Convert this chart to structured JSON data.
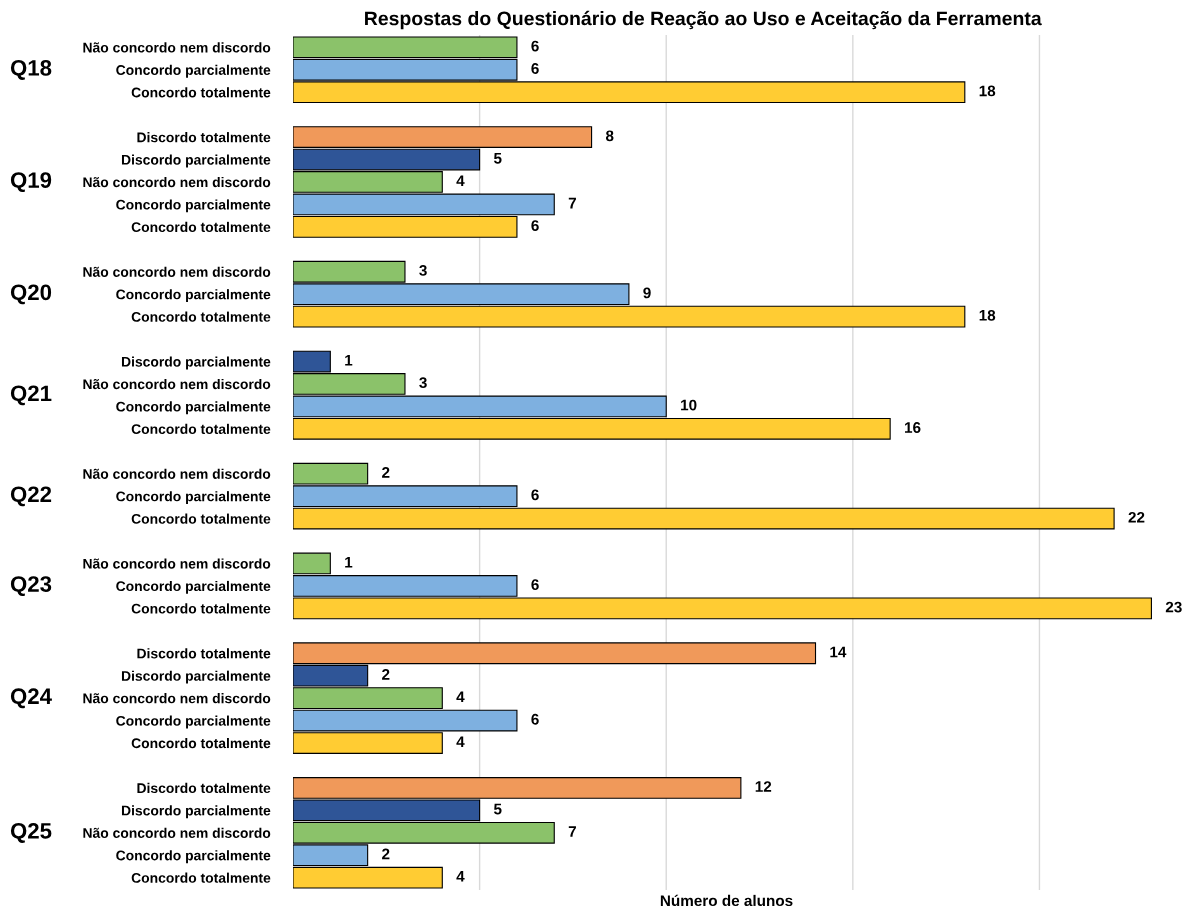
{
  "chart_data": {
    "type": "bar",
    "orientation": "horizontal",
    "title": "Respostas do Questionário de Reação ao Uso e Aceitação da Ferramenta",
    "xlabel": "Número de alunos",
    "categories": [
      "Não concordo nem discordo",
      "Concordo parcialmente",
      "Concordo totalmente",
      null,
      "Discordo totalmente",
      "Discordo parcialmente",
      "Não concordo nem discordo",
      "Concordo parcialmente",
      "Concordo totalmente",
      null,
      "Não concordo nem discordo",
      "Concordo parcialmente",
      "Concordo totalmente",
      null,
      "Discordo parcialmente",
      "Não concordo nem discordo",
      "Concordo parcialmente",
      "Concordo totalmente",
      null,
      "Não concordo nem discordo",
      "Concordo parcialmente",
      "Concordo totalmente",
      null,
      "Não concordo nem discordo",
      "Concordo parcialmente",
      "Concordo totalmente",
      null,
      "Discordo totalmente",
      "Discordo parcialmente",
      "Não concordo nem discordo",
      "Concordo parcialmente",
      "Concordo totalmente",
      null,
      "Discordo totalmente",
      "Discordo parcialmente",
      "Não concordo nem discordo",
      "Concordo parcialmente",
      "Concordo totalmente"
    ],
    "values": [
      6,
      6,
      18,
      null,
      8,
      5,
      4,
      7,
      6,
      null,
      3,
      9,
      18,
      null,
      1,
      3,
      10,
      16,
      null,
      2,
      6,
      22,
      null,
      1,
      6,
      23,
      null,
      14,
      2,
      4,
      6,
      4,
      null,
      12,
      5,
      7,
      2,
      4
    ],
    "colors": [
      "#8bc26a",
      "#7eb0e0",
      "#ffcc33",
      null,
      "#f0995a",
      "#2f5597",
      "#8bc26a",
      "#7eb0e0",
      "#ffcc33",
      null,
      "#8bc26a",
      "#7eb0e0",
      "#ffcc33",
      null,
      "#2f5597",
      "#8bc26a",
      "#7eb0e0",
      "#ffcc33",
      null,
      "#8bc26a",
      "#7eb0e0",
      "#ffcc33",
      null,
      "#8bc26a",
      "#7eb0e0",
      "#ffcc33",
      null,
      "#f0995a",
      "#2f5597",
      "#8bc26a",
      "#7eb0e0",
      "#ffcc33",
      null,
      "#f0995a",
      "#2f5597",
      "#8bc26a",
      "#7eb0e0",
      "#ffcc33"
    ],
    "annotations": [
      "Q18",
      "Q19",
      "Q20",
      "Q21",
      "Q22",
      "Q23",
      "Q24",
      "Q25"
    ],
    "xticks": [
      {
        "value": 5,
        "label": null
      },
      {
        "value": 10,
        "label": null
      },
      {
        "value": 15,
        "label": null
      },
      {
        "value": 20,
        "label": null
      }
    ],
    "tick_labels": "y",
    "grid": "x",
    "data_labels": true
  }
}
